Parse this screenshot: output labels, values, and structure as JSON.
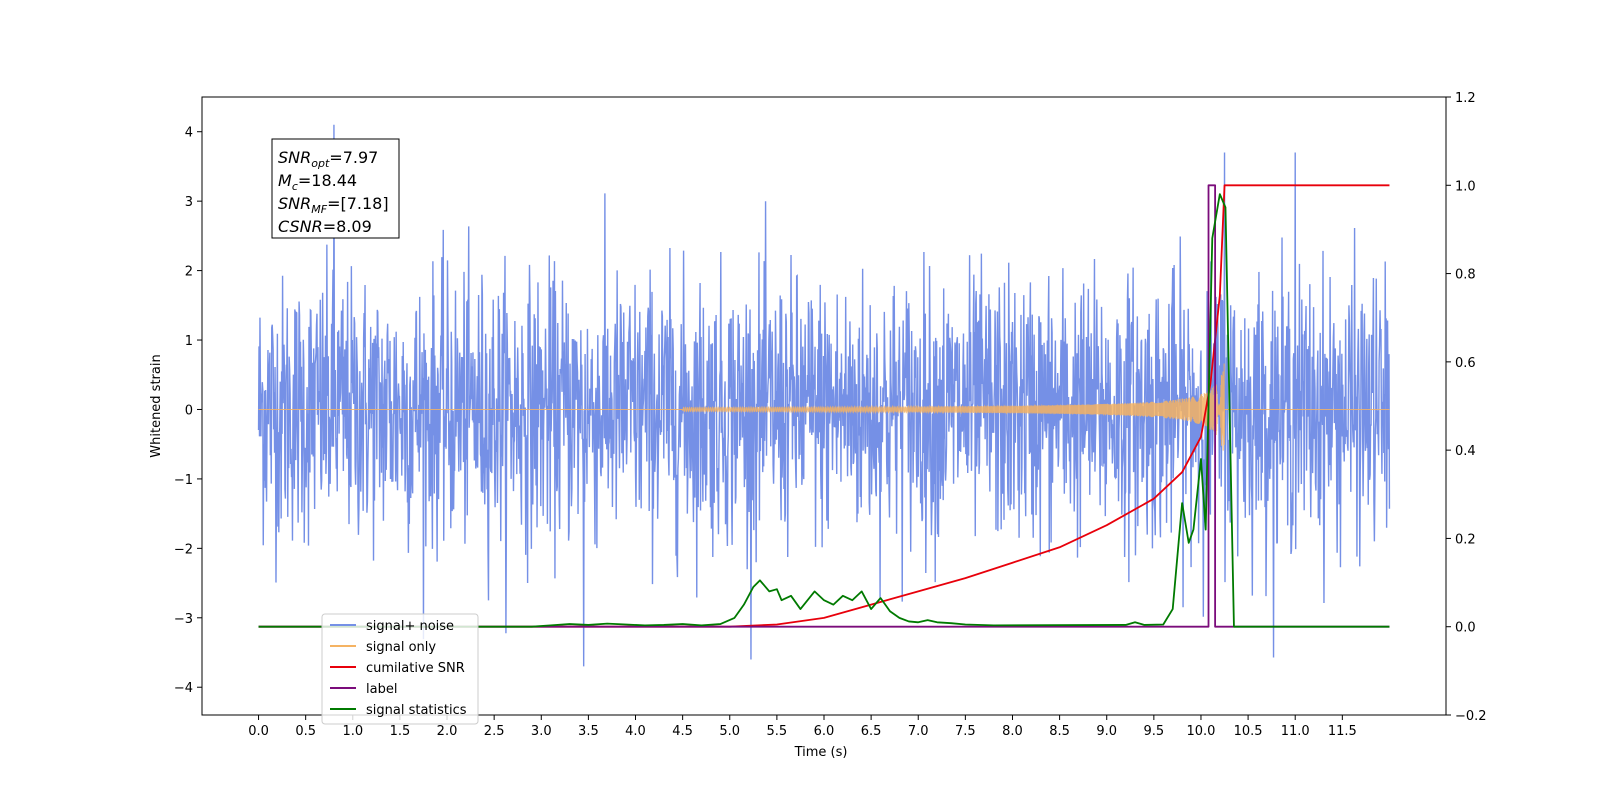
{
  "chart_data": {
    "type": "line",
    "title": "",
    "xlabel": "Time (s)",
    "ylabel": "Whitened strain",
    "ylabel_right": "",
    "xlim": [
      -0.6,
      12.6
    ],
    "ylim": [
      -4.4,
      4.5
    ],
    "ylim_right": [
      -0.2,
      1.2
    ],
    "x_ticks": [
      "0.0",
      "0.5",
      "1.0",
      "1.5",
      "2.0",
      "2.5",
      "3.0",
      "3.5",
      "4.0",
      "4.5",
      "5.0",
      "5.5",
      "6.0",
      "6.5",
      "7.0",
      "7.5",
      "8.0",
      "8.5",
      "9.0",
      "9.5",
      "10.0",
      "10.5",
      "11.0",
      "11.5"
    ],
    "y_ticks_left": [
      "−4",
      "−3",
      "−2",
      "−1",
      "0",
      "1",
      "2",
      "3",
      "4"
    ],
    "y_ticks_right": [
      "−0.2",
      "0.0",
      "0.2",
      "0.4",
      "0.6",
      "0.8",
      "1.0",
      "1.2"
    ],
    "grid": false,
    "legend_position": "lower-left",
    "annotation": {
      "lines": [
        {
          "sym": "SNR",
          "sub": "opt",
          "value": "=7.97"
        },
        {
          "sym": "M",
          "sub": "c",
          "value": "=18.44"
        },
        {
          "sym": "SNR",
          "sub": "MF",
          "value": "=[7.18]"
        },
        {
          "sym": "CSNR",
          "sub": "",
          "value": "=8.09"
        }
      ]
    },
    "series": [
      {
        "name": "signal+ noise",
        "color": "#7590e6",
        "axis": "left",
        "x_range": [
          0.0,
          12.0
        ],
        "noise_std": 0.95,
        "samples": 2400,
        "notable_peaks": [
          {
            "x": 0.8,
            "y": 4.1
          },
          {
            "x": 10.25,
            "y": 3.7
          },
          {
            "x": 11.0,
            "y": 3.7
          },
          {
            "x": 3.45,
            "y": -3.7
          }
        ]
      },
      {
        "name": "signal only",
        "color": "#f5b363",
        "axis": "left",
        "x_range": [
          0.0,
          12.0
        ],
        "chirp_start": 5.5,
        "merger_x": 10.25,
        "peak_amplitude": 0.7
      },
      {
        "name": "cumilative SNR",
        "color": "#e8000b",
        "axis": "right",
        "x": [
          0.0,
          5.0,
          5.5,
          6.0,
          6.5,
          7.0,
          7.5,
          8.0,
          8.5,
          9.0,
          9.5,
          9.8,
          10.0,
          10.1,
          10.2,
          10.25,
          12.0
        ],
        "y": [
          0.0,
          0.0,
          0.005,
          0.02,
          0.05,
          0.08,
          0.11,
          0.145,
          0.18,
          0.23,
          0.29,
          0.35,
          0.43,
          0.55,
          0.75,
          1.0,
          1.0
        ]
      },
      {
        "name": "label",
        "color": "#7b0c7b",
        "axis": "right",
        "x": [
          0.0,
          10.08,
          10.08,
          10.15,
          10.15,
          12.0
        ],
        "y": [
          0.0,
          0.0,
          1.0,
          1.0,
          0.0,
          0.0
        ]
      },
      {
        "name": "signal statistics",
        "color": "#007a00",
        "axis": "right",
        "x": [
          0.0,
          2.9,
          3.1,
          3.3,
          3.5,
          3.7,
          3.9,
          4.1,
          4.3,
          4.5,
          4.7,
          4.9,
          5.05,
          5.15,
          5.25,
          5.32,
          5.42,
          5.5,
          5.55,
          5.65,
          5.75,
          5.9,
          6.0,
          6.1,
          6.2,
          6.3,
          6.4,
          6.5,
          6.6,
          6.7,
          6.8,
          6.9,
          7.0,
          7.1,
          7.2,
          7.35,
          7.5,
          7.8,
          9.2,
          9.3,
          9.4,
          9.6,
          9.7,
          9.8,
          9.87,
          9.92,
          10.0,
          10.05,
          10.12,
          10.2,
          10.26,
          10.35,
          12.0
        ],
        "y": [
          0.0,
          0.0,
          0.003,
          0.006,
          0.004,
          0.007,
          0.005,
          0.003,
          0.004,
          0.006,
          0.003,
          0.006,
          0.02,
          0.05,
          0.09,
          0.105,
          0.08,
          0.085,
          0.06,
          0.07,
          0.04,
          0.08,
          0.06,
          0.05,
          0.07,
          0.06,
          0.08,
          0.04,
          0.065,
          0.035,
          0.02,
          0.012,
          0.01,
          0.015,
          0.01,
          0.008,
          0.005,
          0.003,
          0.004,
          0.01,
          0.004,
          0.005,
          0.04,
          0.28,
          0.19,
          0.22,
          0.38,
          0.22,
          0.88,
          0.98,
          0.95,
          0.0,
          0.0
        ]
      }
    ]
  }
}
